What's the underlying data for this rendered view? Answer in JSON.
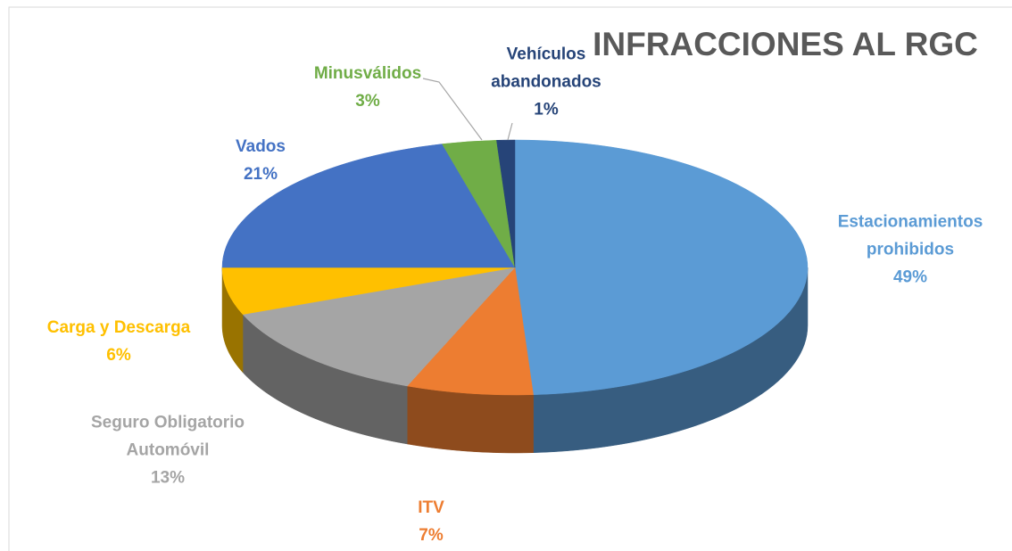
{
  "chart_data": {
    "type": "pie",
    "title": "INFRACCIONES AL RGC",
    "categories": [
      "Estacionamientos prohibidos",
      "ITV",
      "Seguro Obligatorio Automóvil",
      "Carga y Descarga",
      "Vados",
      "Minusválidos",
      "Vehículos abandonados"
    ],
    "values": [
      49,
      7,
      13,
      6,
      21,
      3,
      1
    ],
    "value_labels": [
      "49%",
      "7%",
      "13%",
      "6%",
      "21%",
      "3%",
      "1%"
    ],
    "colors": [
      "#5b9bd5",
      "#ed7d31",
      "#a5a5a5",
      "#ffc000",
      "#4472c4",
      "#70ad47",
      "#264478"
    ]
  }
}
